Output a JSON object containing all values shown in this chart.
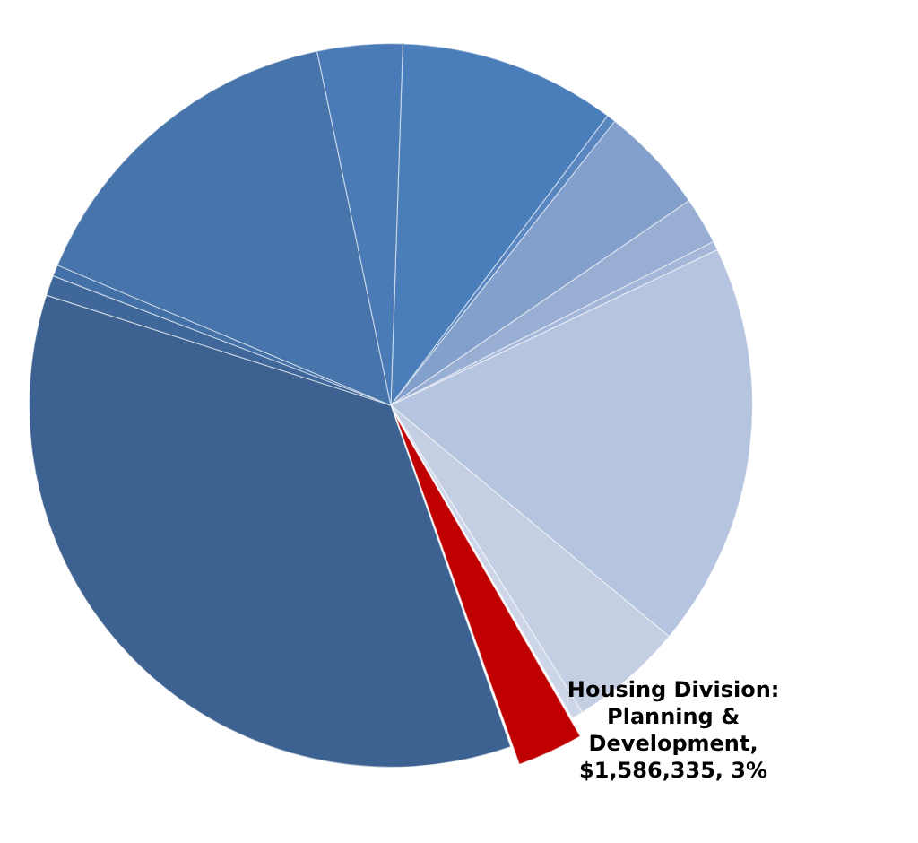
{
  "chart_data": {
    "type": "pie",
    "categories": [
      null,
      null,
      null,
      null,
      null,
      null,
      null,
      null,
      null,
      null,
      null,
      null,
      null,
      null
    ],
    "values": [
      9.7,
      0.4,
      4.8,
      2.1,
      0.4,
      18.1,
      5.1,
      0.5,
      3,
      35.3,
      0.9,
      0.5,
      15.4,
      3.8
    ],
    "colors": [
      "#4a7ebb",
      "#5a86c0",
      "#839fcb",
      "#98aed3",
      "#a4b7d8",
      "#b5c4df",
      "#c4cfe4",
      "#cdd6e8",
      "#c00000",
      "#3d6190",
      "#40679a",
      "#4470a8",
      "#4775ab",
      "#4a7bb7"
    ],
    "value_labels": [
      null,
      null,
      null,
      null,
      null,
      null,
      null,
      null,
      "Housing Division: Planning & Development, $1,586,335, 3%",
      null,
      null,
      null,
      null,
      null
    ]
  }
}
